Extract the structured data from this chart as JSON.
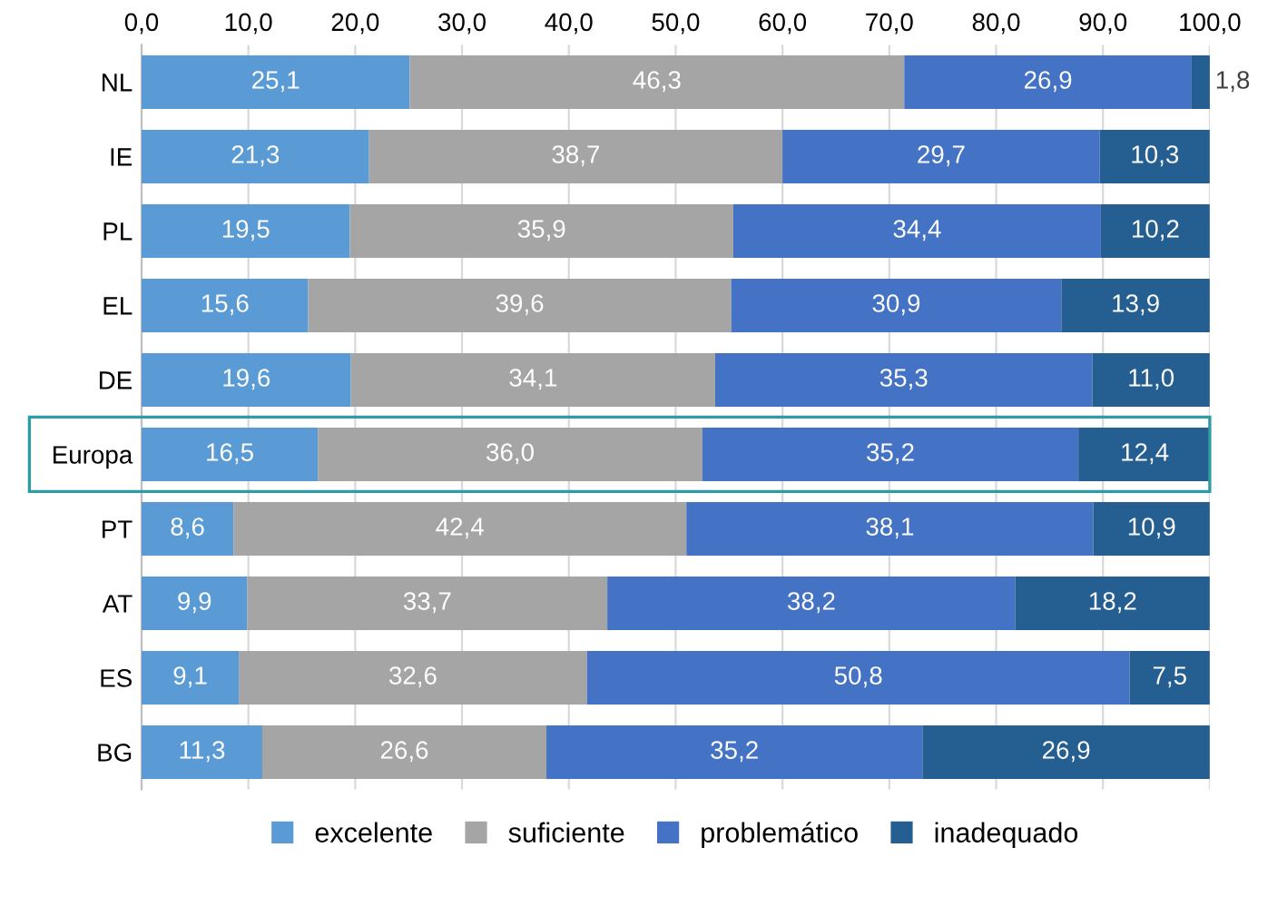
{
  "chart_data": {
    "type": "bar",
    "orientation": "horizontal",
    "stacked": true,
    "categories": [
      "NL",
      "IE",
      "PL",
      "EL",
      "DE",
      "Europa",
      "PT",
      "AT",
      "ES",
      "BG"
    ],
    "series": [
      {
        "name": "excelente",
        "color": "#5b9bd5",
        "values": [
          25.1,
          21.3,
          19.5,
          15.6,
          19.6,
          16.5,
          8.6,
          9.9,
          9.1,
          11.3
        ],
        "value_labels": [
          "25,1",
          "21,3",
          "19,5",
          "15,6",
          "19,6",
          "16,5",
          "8,6",
          "9,9",
          "9,1",
          "11,3"
        ]
      },
      {
        "name": "suficiente",
        "color": "#a5a5a5",
        "values": [
          46.3,
          38.7,
          35.9,
          39.6,
          34.1,
          36.0,
          42.4,
          33.7,
          32.6,
          26.6
        ],
        "value_labels": [
          "46,3",
          "38,7",
          "35,9",
          "39,6",
          "34,1",
          "36,0",
          "42,4",
          "33,7",
          "32,6",
          "26,6"
        ]
      },
      {
        "name": "problemático",
        "color": "#4472c4",
        "values": [
          26.9,
          29.7,
          34.4,
          30.9,
          35.3,
          35.2,
          38.1,
          38.2,
          50.8,
          35.2
        ],
        "value_labels": [
          "26,9",
          "29,7",
          "34,4",
          "30,9",
          "35,3",
          "35,2",
          "38,1",
          "38,2",
          "50,8",
          "35,2"
        ]
      },
      {
        "name": "inadequado",
        "color": "#255e91",
        "values": [
          1.8,
          10.3,
          10.2,
          13.9,
          11.0,
          12.4,
          10.9,
          18.2,
          7.5,
          26.9
        ],
        "value_labels": [
          "1,8",
          "10,3",
          "10,2",
          "13,9",
          "11,0",
          "12,4",
          "10,9",
          "18,2",
          "7,5",
          "26,9"
        ]
      }
    ],
    "xlim": [
      0,
      100
    ],
    "xticks": [
      {
        "value": 0,
        "label": "0,0"
      },
      {
        "value": 10,
        "label": "10,0"
      },
      {
        "value": 20,
        "label": "20,0"
      },
      {
        "value": 30,
        "label": "30,0"
      },
      {
        "value": 40,
        "label": "40,0"
      },
      {
        "value": 50,
        "label": "50,0"
      },
      {
        "value": 60,
        "label": "60,0"
      },
      {
        "value": 70,
        "label": "70,0"
      },
      {
        "value": 80,
        "label": "80,0"
      },
      {
        "value": 90,
        "label": "90,0"
      },
      {
        "value": 100,
        "label": "100,0"
      }
    ],
    "grid": "x",
    "legend": "bottom"
  }
}
